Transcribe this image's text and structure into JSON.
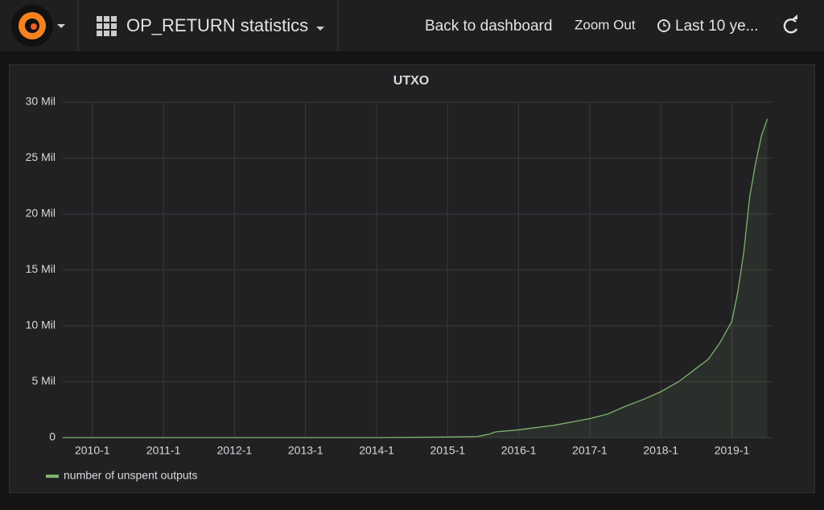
{
  "header": {
    "title": "OP_RETURN statistics",
    "back": "Back to dashboard",
    "zoom": "Zoom Out",
    "range": "Last 10 ye..."
  },
  "chart_data": {
    "type": "line",
    "title": "UTXO",
    "x": [
      "2009-8",
      "2010-1",
      "2011-1",
      "2012-1",
      "2013-1",
      "2014-1",
      "2015-1",
      "2015-6",
      "2015-7",
      "2015-8",
      "2015-9",
      "2016-1",
      "2016-7",
      "2017-1",
      "2017-4",
      "2017-7",
      "2017-10",
      "2018-1",
      "2018-4",
      "2018-7",
      "2018-9",
      "2018-11",
      "2019-1",
      "2019-2",
      "2019-3",
      "2019-4",
      "2019-5",
      "2019-6",
      "2019-7"
    ],
    "series": [
      {
        "name": "number of unspent outputs",
        "color": "#7eb26d",
        "values": [
          0,
          0,
          0,
          0,
          0,
          0,
          0.05,
          0.1,
          0.2,
          0.3,
          0.5,
          0.7,
          1.1,
          1.7,
          2.1,
          2.8,
          3.4,
          4.1,
          5.0,
          6.2,
          7.0,
          8.5,
          10.4,
          13,
          16.5,
          21.5,
          24.5,
          27,
          28.5
        ]
      }
    ],
    "xlim": [
      "2009-8",
      "2019-8"
    ],
    "xticks": [
      "2010-1",
      "2011-1",
      "2012-1",
      "2013-1",
      "2014-1",
      "2015-1",
      "2016-1",
      "2017-1",
      "2018-1",
      "2019-1"
    ],
    "ylim": [
      0,
      30
    ],
    "yticks": [
      0,
      {
        "value": 5,
        "label": "5 Mil"
      },
      {
        "value": 10,
        "label": "10 Mil"
      },
      {
        "value": 15,
        "label": "15 Mil"
      },
      {
        "value": 20,
        "label": "20 Mil"
      },
      {
        "value": 25,
        "label": "25 Mil"
      },
      {
        "value": 30,
        "label": "30 Mil"
      }
    ],
    "grid": true
  }
}
